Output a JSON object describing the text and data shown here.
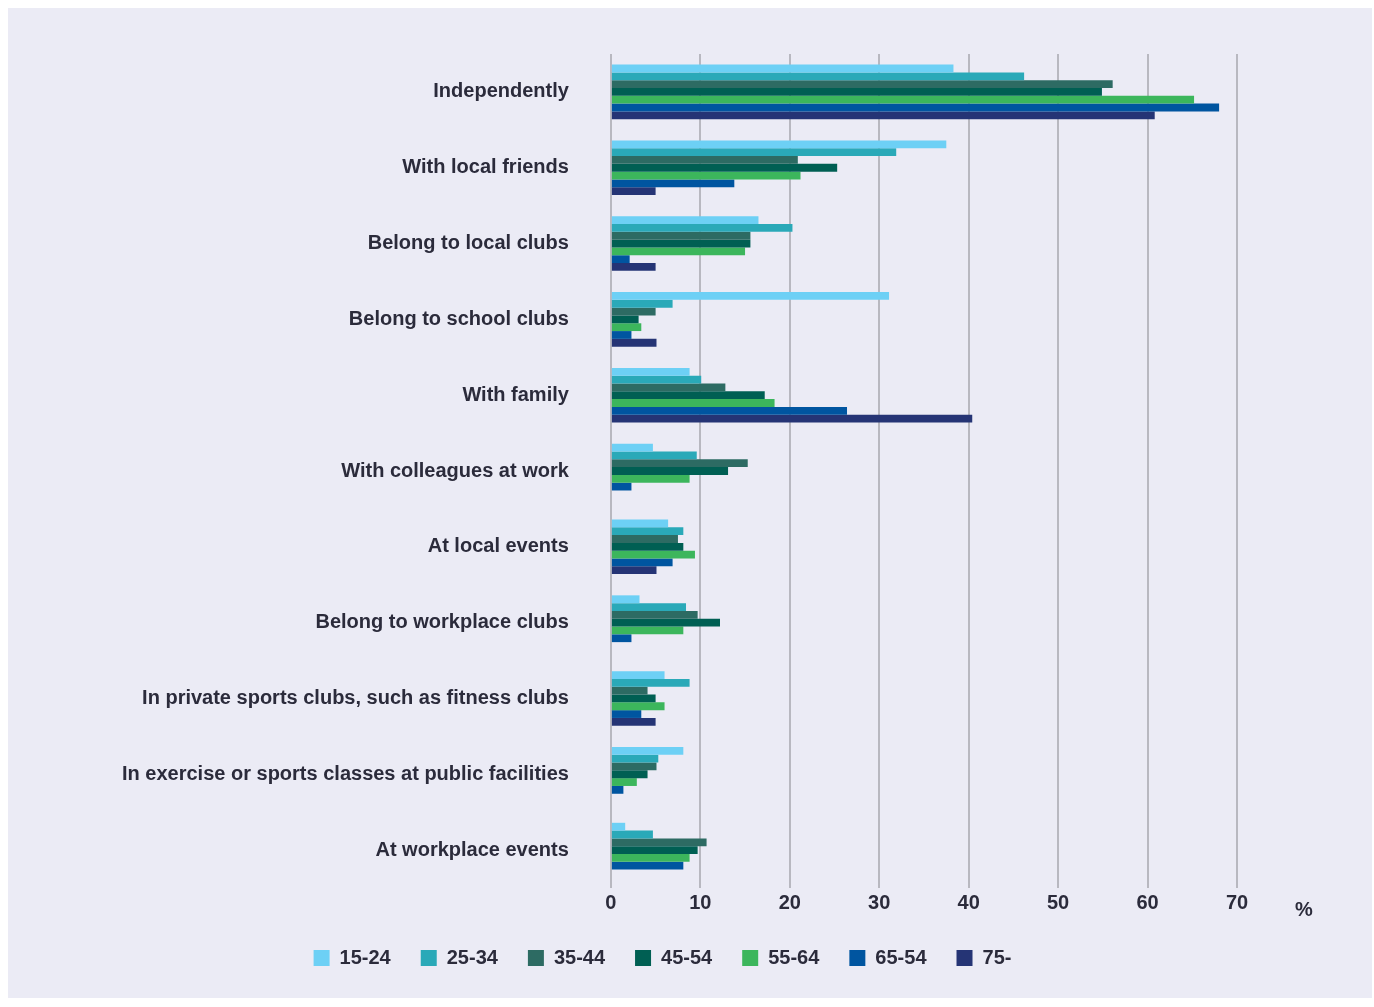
{
  "chart_data": {
    "type": "bar",
    "orientation": "horizontal",
    "xlabel": "%",
    "categories": [
      "Independently",
      "With local friends",
      "Belong to local clubs",
      "Belong to school clubs",
      "With family",
      "With colleagues at work",
      "At local events",
      "Belong to workplace clubs",
      "In private sports clubs, such as fitness clubs",
      "In exercise or sports classes at public facilities",
      "At workplace events"
    ],
    "series": [
      {
        "name": "15-24",
        "color": "#6dd0f5",
        "values": [
          38.3,
          37.5,
          16.5,
          31.1,
          8.8,
          4.7,
          6.4,
          3.2,
          6.0,
          8.1,
          1.6
        ]
      },
      {
        "name": "25-34",
        "color": "#2aa9b8",
        "values": [
          46.2,
          31.9,
          20.3,
          6.9,
          10.1,
          9.6,
          8.1,
          8.4,
          8.8,
          5.3,
          4.7
        ]
      },
      {
        "name": "35-44",
        "color": "#2d6b63",
        "values": [
          56.1,
          20.9,
          15.6,
          5.0,
          12.8,
          15.3,
          7.5,
          9.7,
          4.1,
          5.1,
          10.7
        ]
      },
      {
        "name": "45-54",
        "color": "#005f53",
        "values": [
          54.9,
          25.3,
          15.6,
          3.1,
          17.2,
          13.1,
          8.1,
          12.2,
          5.0,
          4.1,
          9.7
        ]
      },
      {
        "name": "55-64",
        "color": "#3cb65c",
        "values": [
          65.2,
          21.2,
          15.0,
          3.4,
          18.3,
          8.8,
          9.4,
          8.1,
          6.0,
          2.9,
          8.8
        ]
      },
      {
        "name": "65-54",
        "color": "#0055a0",
        "values": [
          68.0,
          13.8,
          2.1,
          2.3,
          26.4,
          2.3,
          6.9,
          2.3,
          3.4,
          1.4,
          8.1
        ]
      },
      {
        "name": "75-",
        "color": "#253475",
        "values": [
          60.8,
          5.0,
          5.0,
          5.1,
          40.4,
          null,
          5.1,
          null,
          5.0,
          null,
          null
        ]
      }
    ],
    "xlim": [
      0,
      70
    ],
    "xticks": [
      0,
      10,
      20,
      30,
      40,
      50,
      60,
      70
    ],
    "grid": "x",
    "legend": "bottom"
  }
}
